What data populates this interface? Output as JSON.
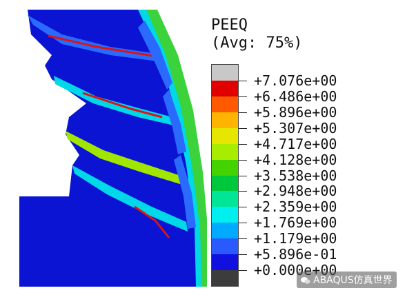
{
  "legend": {
    "title": "PEEQ",
    "subtitle": "(Avg: 75%)",
    "bands": [
      {
        "color": "#c8c8c8"
      },
      {
        "color": "#e00000"
      },
      {
        "color": "#ff5a00"
      },
      {
        "color": "#ffb400"
      },
      {
        "color": "#e6e600"
      },
      {
        "color": "#a8ec00"
      },
      {
        "color": "#44d200"
      },
      {
        "color": "#00c83c"
      },
      {
        "color": "#00e696"
      },
      {
        "color": "#00f0f0"
      },
      {
        "color": "#00aaff"
      },
      {
        "color": "#2a5aff"
      },
      {
        "color": "#1010e0"
      },
      {
        "color": "#3c3c3c"
      }
    ],
    "values": [
      "+7.076e+00",
      "+6.486e+00",
      "+5.896e+00",
      "+5.307e+00",
      "+4.717e+00",
      "+4.128e+00",
      "+3.538e+00",
      "+2.948e+00",
      "+2.359e+00",
      "+1.769e+00",
      "+1.179e+00",
      "+5.896e-01",
      "+0.000e+00"
    ]
  },
  "watermark": "ABAQUS仿真世界",
  "colors": {
    "base_blue": "#0a14d2",
    "light_blue": "#2a6aff",
    "cyan": "#00d8e8",
    "green": "#3cd23c",
    "yellow_green": "#a0e600",
    "red": "#dc1414"
  }
}
